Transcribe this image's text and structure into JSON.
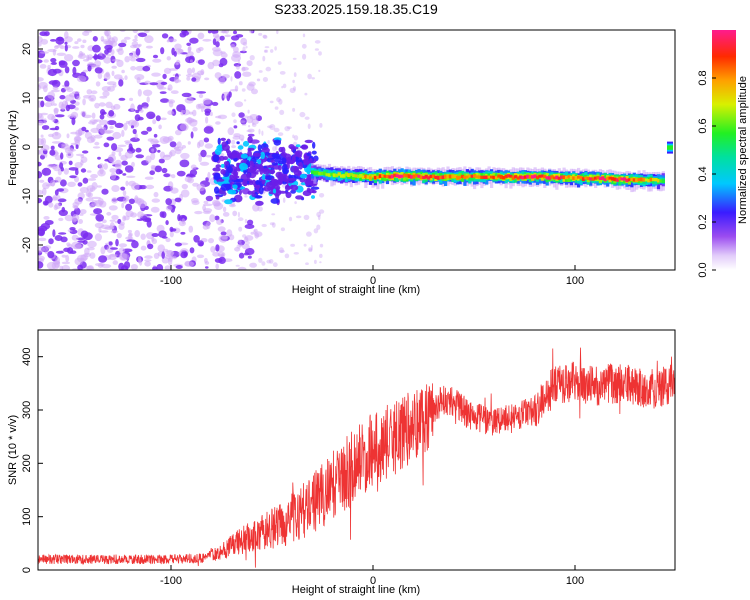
{
  "title": "S233.2025.159.18.35.C19",
  "colors": {
    "snr_line": "#ee3333",
    "noise_purple": "#7a2cf0",
    "noise_light": "#cfa8f7"
  },
  "charts": {
    "spectrogram": {
      "xlabel": "Height of straight line (km)",
      "ylabel": "Frequency (Hz)",
      "xticks": [
        "-100",
        "0",
        "100"
      ],
      "yticks": [
        "-20",
        "-10",
        "0",
        "10",
        "20"
      ],
      "colorbar": {
        "label": "Normalized spectral amplitude",
        "ticks": [
          "0.0",
          "0.2",
          "0.4",
          "0.6",
          "0.8"
        ]
      }
    },
    "snr": {
      "xlabel": "Height of straight line (km)",
      "ylabel": "SNR (10 * v/v)",
      "xticks": [
        "-100",
        "0",
        "100"
      ],
      "yticks": [
        "0",
        "100",
        "200",
        "300",
        "400"
      ]
    }
  },
  "chart_data": [
    {
      "type": "heatmap",
      "title": "S233.2025.159.18.35.C19",
      "xlabel": "Height of straight line (km)",
      "ylabel": "Frequency (Hz)",
      "xlim": [
        -166,
        150
      ],
      "ylim": [
        -25,
        24
      ],
      "colorbar": {
        "label": "Normalized spectral amplitude",
        "range": [
          0,
          1
        ]
      },
      "signal_track": {
        "x": [
          -30,
          -20,
          -10,
          0,
          10,
          20,
          30,
          40,
          50,
          60,
          70,
          80,
          90,
          100,
          110,
          120,
          130,
          140,
          145
        ],
        "frequency": [
          -5,
          -5.5,
          -5.7,
          -6,
          -5.8,
          -5.9,
          -6,
          -6,
          -5.9,
          -6,
          -6,
          -6,
          -6.1,
          -6.2,
          -6.3,
          -6.5,
          -6.6,
          -6.7,
          -6.7
        ],
        "amplitude": [
          0.45,
          0.55,
          0.6,
          0.7,
          0.8,
          0.8,
          0.75,
          0.7,
          0.7,
          0.75,
          0.75,
          0.8,
          0.75,
          0.7,
          0.75,
          0.8,
          0.7,
          0.6,
          0.5
        ]
      }
    },
    {
      "type": "line",
      "xlabel": "Height of straight line (km)",
      "ylabel": "SNR (10 * v/v)",
      "xlim": [
        -166,
        150
      ],
      "ylim": [
        0,
        450
      ],
      "series": [
        {
          "x": [
            -166,
            -140,
            -120,
            -100,
            -85,
            -75,
            -65,
            -55,
            -45,
            -35,
            -25,
            -15,
            -10,
            0,
            10,
            20,
            30,
            35,
            40,
            45,
            50,
            60,
            70,
            80,
            85,
            90,
            95,
            100,
            110,
            120,
            130,
            140,
            150
          ],
          "values": [
            20,
            20,
            20,
            20,
            22,
            35,
            55,
            70,
            85,
            110,
            140,
            175,
            195,
            225,
            245,
            270,
            300,
            320,
            315,
            300,
            285,
            280,
            285,
            300,
            320,
            345,
            350,
            355,
            345,
            350,
            345,
            340,
            350
          ]
        }
      ]
    }
  ]
}
